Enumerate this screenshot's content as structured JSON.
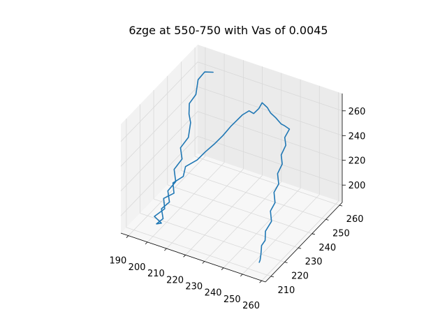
{
  "chart_data": {
    "type": "line",
    "projection": "3d",
    "title": "6zge at 550-750 with Vas of 0.0045",
    "grid": true,
    "x_ticks": [
      190,
      200,
      210,
      220,
      230,
      240,
      250,
      260
    ],
    "y_ticks": [
      210,
      220,
      230,
      240,
      250,
      260
    ],
    "z_ticks": [
      200,
      220,
      240,
      260
    ],
    "xlim": [
      186,
      262
    ],
    "ylim": [
      206,
      262
    ],
    "zlim": [
      186,
      274
    ],
    "colors": {
      "series": "#1f77b4",
      "pane_left": "#f2f2f2",
      "pane_back": "#ebebeb",
      "pane_floor": "#f7f7f7"
    },
    "series": [
      {
        "points": [
          [
            197,
            258,
            262
          ],
          [
            194,
            256,
            263
          ],
          [
            192,
            254,
            258
          ],
          [
            193,
            251,
            250
          ],
          [
            191,
            249,
            244
          ],
          [
            193,
            246,
            240
          ],
          [
            196,
            243,
            238
          ],
          [
            197,
            240,
            230
          ],
          [
            195,
            237,
            224
          ],
          [
            198,
            234,
            220
          ],
          [
            196,
            231,
            214
          ],
          [
            199,
            228,
            209
          ],
          [
            197,
            225,
            204
          ],
          [
            200,
            222,
            200
          ],
          [
            198,
            219,
            197
          ],
          [
            201,
            216,
            194
          ],
          [
            199,
            214,
            191
          ],
          [
            203,
            212,
            196
          ],
          [
            200,
            211,
            201
          ],
          [
            204,
            213,
            207
          ],
          [
            202,
            215,
            212
          ],
          [
            206,
            217,
            216
          ],
          [
            204,
            219,
            221
          ],
          [
            208,
            221,
            226
          ],
          [
            207,
            224,
            230
          ],
          [
            211,
            227,
            234
          ],
          [
            213,
            230,
            238
          ],
          [
            216,
            233,
            243
          ],
          [
            218,
            236,
            247
          ],
          [
            220,
            239,
            252
          ],
          [
            222,
            241,
            256
          ],
          [
            224,
            242,
            260
          ],
          [
            226,
            244,
            262
          ],
          [
            227,
            246,
            258
          ],
          [
            229,
            247,
            262
          ],
          [
            230,
            248,
            266
          ],
          [
            232,
            249,
            262
          ],
          [
            233,
            250,
            257
          ],
          [
            235,
            251,
            253
          ],
          [
            237,
            252,
            248
          ],
          [
            238,
            253,
            246
          ],
          [
            240,
            254,
            243
          ],
          [
            239,
            252,
            238
          ],
          [
            241,
            250,
            235
          ],
          [
            240,
            248,
            229
          ],
          [
            242,
            246,
            225
          ],
          [
            241,
            244,
            219
          ],
          [
            243,
            242,
            214
          ],
          [
            242,
            240,
            209
          ],
          [
            244,
            238,
            204
          ],
          [
            243,
            236,
            199
          ],
          [
            245,
            234,
            194
          ],
          [
            244,
            231,
            189
          ],
          [
            246,
            228,
            186
          ],
          [
            247,
            224,
            187
          ],
          [
            249,
            221,
            188
          ],
          [
            251,
            218,
            189
          ],
          [
            252,
            216,
            187
          ],
          [
            253,
            214,
            188
          ]
        ]
      }
    ]
  }
}
